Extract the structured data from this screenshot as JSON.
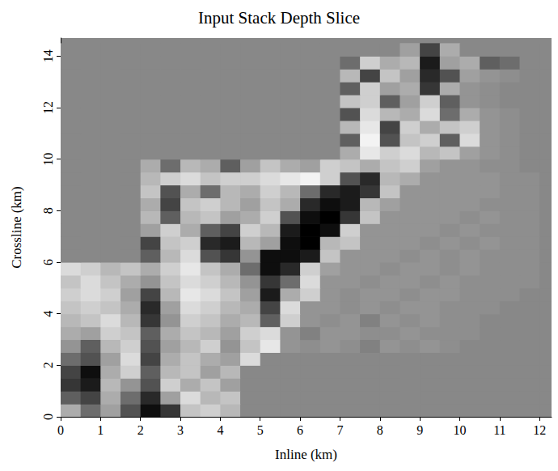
{
  "chart_data": {
    "type": "heatmap",
    "title": "Input Stack Depth Slice",
    "x_label": "Inline (km)",
    "y_label": "Crossline (km)",
    "xlim": [
      0,
      12.3
    ],
    "xticks": [
      0,
      1,
      2,
      3,
      4,
      5,
      6,
      7,
      8,
      9,
      10,
      11,
      12
    ],
    "ylim": [
      0,
      14.7
    ],
    "yticks": [
      0,
      2,
      4,
      6,
      8,
      10,
      12,
      14
    ],
    "zlim": [
      -1,
      1
    ],
    "color": "gray",
    "x": [
      0.25,
      0.75,
      1.25,
      1.75,
      2.25,
      2.75,
      3.25,
      3.75,
      4.25,
      4.75,
      5.25,
      5.75,
      6.25,
      6.75,
      7.25,
      7.75,
      8.25,
      8.75,
      9.25,
      9.75,
      10.25,
      10.75,
      11.25,
      11.75,
      12.25
    ],
    "y": [
      0.25,
      0.75,
      1.25,
      1.75,
      2.25,
      2.75,
      3.25,
      3.75,
      4.25,
      4.75,
      5.25,
      5.75,
      6.25,
      6.75,
      7.25,
      7.75,
      8.25,
      8.75,
      9.25,
      9.75,
      10.25,
      10.75,
      11.25,
      11.75,
      12.25,
      12.75,
      13.25,
      13.75,
      14.25
    ],
    "z": [
      [
        0.3,
        -0.2,
        0.2,
        -0.4,
        -0.9,
        -0.6,
        0.5,
        0.6,
        0.4,
        0,
        0,
        0,
        0,
        0,
        0,
        0,
        0,
        0,
        0,
        0,
        0,
        0,
        0,
        0,
        0
      ],
      [
        -0.3,
        -0.5,
        0.3,
        -0.2,
        -0.7,
        0.2,
        0.7,
        0.4,
        0.5,
        0,
        0,
        0,
        0,
        0,
        0,
        0,
        0,
        0,
        0,
        0,
        0,
        0,
        0,
        0,
        0
      ],
      [
        -0.6,
        -0.8,
        0.4,
        0.1,
        -0.4,
        0.6,
        0.3,
        0.5,
        0.2,
        0,
        0,
        0,
        0,
        0,
        0,
        0,
        0,
        0,
        0,
        0,
        0,
        0,
        0,
        0,
        0
      ],
      [
        -0.5,
        -0.9,
        0.3,
        0.6,
        -0.3,
        0.4,
        0.5,
        0.2,
        0.4,
        0,
        0,
        0,
        0,
        0,
        0,
        0,
        0,
        0,
        0,
        0,
        0,
        0,
        0,
        0,
        0
      ],
      [
        -0.2,
        -0.4,
        0.2,
        0.7,
        -0.5,
        0.3,
        0.5,
        0.3,
        0.2,
        0.7,
        0,
        0,
        0,
        0,
        0,
        0,
        0,
        0,
        0,
        0,
        0,
        0,
        0,
        0,
        0
      ],
      [
        0.1,
        -0.3,
        0.4,
        0.6,
        -0.4,
        0.2,
        0.4,
        0.6,
        0.1,
        0.5,
        0.8,
        0.1,
        0.05,
        0.1,
        0.05,
        -0.05,
        0.1,
        0.05,
        0.1,
        0.05,
        0,
        0,
        0,
        0,
        0
      ],
      [
        0.3,
        0.2,
        0.6,
        0.5,
        -0.3,
        0.3,
        0.5,
        0.4,
        0.2,
        0.6,
        0.7,
        0.1,
        -0.05,
        0.1,
        0.1,
        0.05,
        0.05,
        0.1,
        0.05,
        0.05,
        0.05,
        0,
        0,
        0,
        0
      ],
      [
        0.4,
        0.5,
        0.7,
        0.4,
        -0.6,
        0.1,
        0.6,
        0.5,
        0.3,
        0.4,
        -0.3,
        0.6,
        0.1,
        0.05,
        0.1,
        -0.05,
        0.1,
        0.05,
        0.1,
        0.05,
        0.05,
        0,
        0,
        0,
        0
      ],
      [
        0.5,
        0.6,
        0.5,
        0.3,
        -0.7,
        0.2,
        0.7,
        0.6,
        0.4,
        0.3,
        -0.5,
        0.7,
        0.1,
        0.1,
        0.05,
        0.1,
        0.05,
        0.1,
        0.1,
        0.05,
        0.05,
        0.05,
        0,
        0,
        0
      ],
      [
        0.6,
        0.7,
        0.6,
        0.2,
        -0.5,
        0.4,
        0.8,
        0.7,
        0.5,
        0.2,
        -0.8,
        0.3,
        0.6,
        0.1,
        0.05,
        0.1,
        0.1,
        0.05,
        0.1,
        0.1,
        0.05,
        0.05,
        0.05,
        0,
        0
      ],
      [
        0.5,
        0.7,
        0.5,
        0.3,
        0.1,
        0.5,
        0.7,
        0.6,
        0.4,
        0.1,
        -0.6,
        -0.2,
        0.7,
        0.1,
        0.1,
        0.05,
        0.1,
        0.1,
        0.05,
        0.1,
        0.05,
        0.05,
        0.05,
        0.05,
        0
      ],
      [
        0.7,
        0.6,
        0.4,
        0.5,
        0.3,
        0.6,
        0.8,
        0.5,
        0.3,
        -0.2,
        -0.9,
        -0.7,
        0.6,
        0.2,
        0.1,
        0.1,
        0.05,
        0.1,
        0.1,
        0.05,
        0.1,
        0.05,
        0.05,
        0.05,
        0
      ],
      [
        0,
        0,
        0,
        0,
        -0.3,
        0.4,
        0.7,
        -0.4,
        -0.6,
        0.1,
        -0.9,
        -0.9,
        -0.8,
        0.5,
        0.1,
        0.1,
        0.1,
        0.05,
        0.1,
        0.05,
        0.1,
        0.05,
        0.05,
        0.05,
        0
      ],
      [
        0,
        0,
        0,
        0,
        -0.5,
        0.5,
        0.6,
        -0.7,
        -0.8,
        0.4,
        0.2,
        -0.9,
        -1,
        0.4,
        0.5,
        0.1,
        0.1,
        0.1,
        0.05,
        0.1,
        0.05,
        0.1,
        0.05,
        0.05,
        0
      ],
      [
        0,
        0,
        0,
        0,
        0.2,
        0.6,
        0.3,
        -0.3,
        -0.5,
        0.6,
        0.4,
        -0.8,
        -1,
        -0.9,
        0.6,
        0.1,
        0.1,
        0.1,
        0.1,
        0.05,
        0.1,
        0.05,
        0.05,
        0.05,
        0
      ],
      [
        0,
        0,
        0,
        0,
        0.4,
        -0.3,
        0.4,
        0.5,
        0.2,
        0.3,
        0.6,
        -0.4,
        -0.9,
        -1,
        -0.6,
        0.5,
        0.1,
        0.1,
        0.1,
        0.1,
        0.05,
        0.1,
        0.05,
        0.05,
        0
      ],
      [
        0,
        0,
        0,
        0,
        0.3,
        -0.5,
        0.5,
        0.6,
        0.4,
        0.2,
        0.5,
        0.3,
        -0.7,
        -0.9,
        -0.8,
        0.4,
        0.2,
        0.1,
        0.1,
        0.1,
        0.1,
        0.05,
        0.05,
        0.05,
        0
      ],
      [
        0,
        0,
        0,
        0,
        0.5,
        -0.4,
        0.3,
        -0.2,
        0.4,
        0.3,
        0.6,
        0.4,
        -0.2,
        -0.7,
        -0.8,
        -0.6,
        0.5,
        0.1,
        0.1,
        0.1,
        0.1,
        0.1,
        0.05,
        0.05,
        0
      ],
      [
        0,
        0,
        0,
        0,
        0.4,
        0.6,
        0.7,
        0.5,
        0.6,
        0.6,
        0.7,
        0.8,
        0.9,
        0.6,
        -0.4,
        -0.7,
        0.4,
        0.3,
        0.1,
        0.1,
        0.1,
        0.1,
        0.05,
        0.05,
        0
      ],
      [
        0,
        0,
        0,
        0,
        0.3,
        -0.2,
        0.4,
        0.3,
        -0.3,
        0.2,
        0.5,
        0.3,
        0.2,
        0.6,
        0.5,
        0.3,
        0.5,
        0.6,
        0.2,
        0.1,
        0.1,
        0.05,
        0.05,
        0,
        0
      ],
      [
        0,
        0,
        0,
        0,
        0,
        0,
        0,
        0,
        0,
        0,
        0,
        0,
        0,
        0,
        0.3,
        0.8,
        0.6,
        0.7,
        0.4,
        0.5,
        0.2,
        0.1,
        0.05,
        0,
        0
      ],
      [
        0,
        0,
        0,
        0,
        0,
        0,
        0,
        0,
        0,
        0,
        0,
        0,
        0,
        0,
        -0.3,
        0.9,
        -0.4,
        0.5,
        0.6,
        -0.3,
        0.7,
        0.1,
        0.05,
        0,
        0
      ],
      [
        0,
        0,
        0,
        0,
        0,
        0,
        0,
        0,
        0,
        0,
        0,
        0,
        0,
        0,
        0.4,
        0.8,
        -0.5,
        0.6,
        0.3,
        0.5,
        0.6,
        0.1,
        0.05,
        0,
        0
      ],
      [
        0,
        0,
        0,
        0,
        0,
        0,
        0,
        0,
        0,
        0,
        0,
        0,
        0,
        0,
        -0.4,
        0.7,
        0.4,
        0.3,
        0.7,
        -0.2,
        0.3,
        0.1,
        0.05,
        0,
        0
      ],
      [
        0,
        0,
        0,
        0,
        0,
        0,
        0,
        0,
        0,
        0,
        0,
        0,
        0,
        0,
        0.5,
        0.6,
        -0.3,
        0.2,
        0.6,
        -0.3,
        0.1,
        0.05,
        0,
        0,
        0
      ],
      [
        0,
        0,
        0,
        0,
        0,
        0,
        0,
        0,
        0,
        0,
        0,
        0,
        0,
        0,
        -0.3,
        0.6,
        0.2,
        0.3,
        -0.6,
        0.3,
        0.1,
        0.05,
        0,
        0,
        0
      ],
      [
        0,
        0,
        0,
        0,
        0,
        0,
        0,
        0,
        0,
        0,
        0,
        0,
        0,
        0,
        0.4,
        -0.5,
        0.5,
        0.2,
        -0.7,
        -0.4,
        0.2,
        0.1,
        0.05,
        0,
        0
      ],
      [
        0,
        0,
        0,
        0,
        0,
        0,
        0,
        0,
        0,
        0,
        0,
        0,
        0,
        0,
        -0.2,
        0.6,
        0.3,
        0.4,
        -0.8,
        0.2,
        0.3,
        -0.3,
        -0.2,
        0,
        0
      ],
      [
        0,
        0,
        0,
        0,
        0,
        0,
        0,
        0,
        0,
        0,
        0,
        0,
        0,
        0,
        0,
        0,
        0,
        0.2,
        -0.5,
        0.3,
        0,
        0,
        0,
        0,
        0
      ]
    ]
  }
}
